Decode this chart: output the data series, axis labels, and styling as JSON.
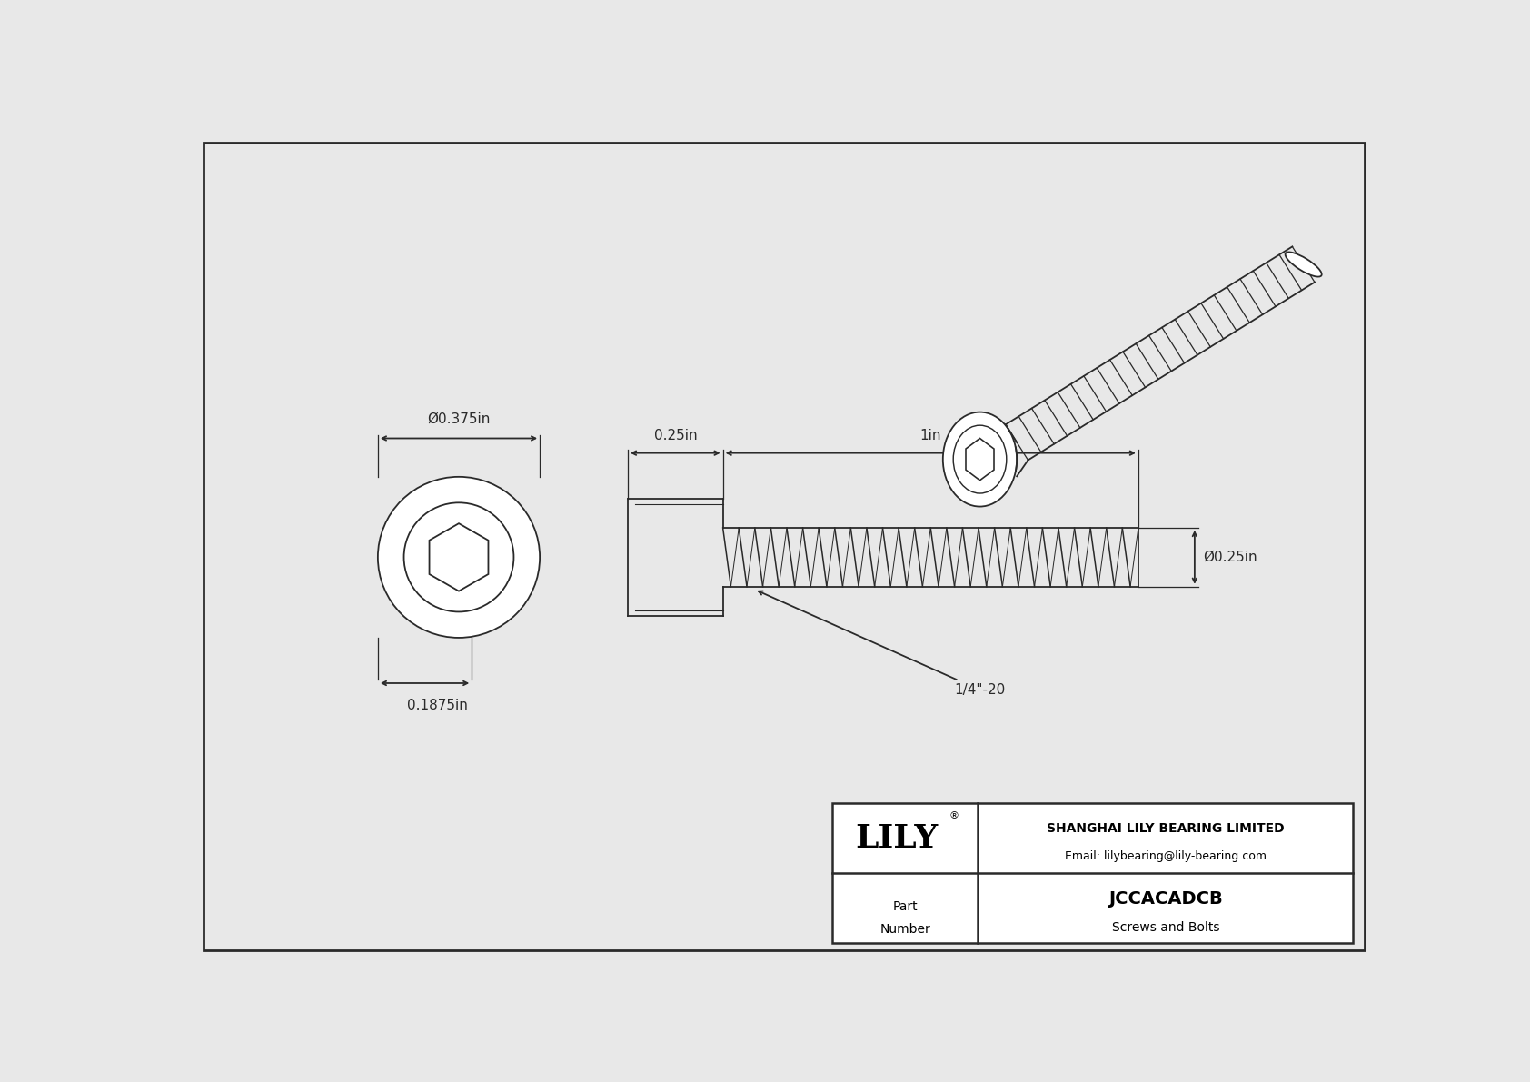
{
  "bg_color": "#e8e8e8",
  "border_color": "#2a2a2a",
  "line_color": "#2a2a2a",
  "title": "JCCACADCB",
  "subtitle": "Screws and Bolts",
  "company": "SHANGHAI LILY BEARING LIMITED",
  "email": "Email: lilybearing@lily-bearing.com",
  "part_label": "Part\nNumber",
  "dim_head_diameter": "Ø0.375in",
  "dim_socket_depth": "0.1875in",
  "dim_head_length": "0.25in",
  "dim_thread_length": "1in",
  "dim_shaft_diameter": "Ø0.25in",
  "dim_thread_label": "1/4\"-20"
}
